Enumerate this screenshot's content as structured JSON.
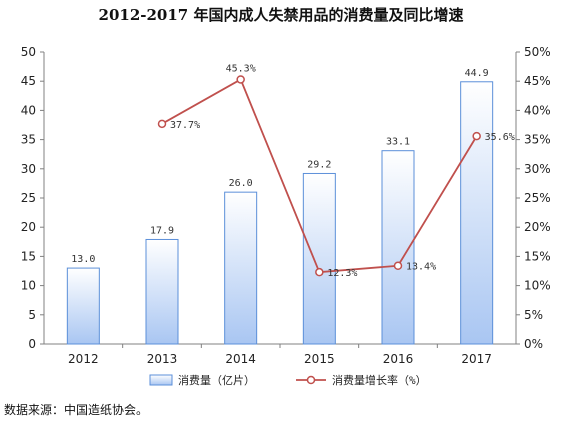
{
  "title": "2012-2017 年国内成人失禁用品的消费量及同比增速",
  "source": "数据来源：中国造纸协会。",
  "colors": {
    "bar_top": "#ffffff",
    "bar_bottom": "#a9c6f2",
    "bar_border": "#5b8fd9",
    "line": "#c0504d",
    "axis": "#808080"
  },
  "chart_data": {
    "type": "bar",
    "title": "2012-2017 年国内成人失禁用品的消费量及同比增速",
    "categories": [
      "2012",
      "2013",
      "2014",
      "2015",
      "2016",
      "2017"
    ],
    "series": [
      {
        "name": "消费量（亿片）",
        "type": "bar",
        "axis": "left",
        "values": [
          13.0,
          17.9,
          26.0,
          29.2,
          33.1,
          44.9
        ],
        "labels": [
          "13.0",
          "17.9",
          "26.0",
          "29.2",
          "33.1",
          "44.9"
        ]
      },
      {
        "name": "消费量增长率（%）",
        "type": "line",
        "axis": "right",
        "values": [
          null,
          37.7,
          45.3,
          12.3,
          13.4,
          35.6
        ],
        "labels": [
          "",
          "37.7%",
          "45.3%",
          "12.3%",
          "13.4%",
          "35.6%"
        ]
      }
    ],
    "y_left": {
      "min": 0,
      "max": 50,
      "step": 5,
      "ticks": [
        "0",
        "5",
        "10",
        "15",
        "20",
        "25",
        "30",
        "35",
        "40",
        "45",
        "50"
      ]
    },
    "y_right": {
      "min": 0,
      "max": 50,
      "step": 5,
      "ticks": [
        "0%",
        "5%",
        "10%",
        "15%",
        "20%",
        "25%",
        "30%",
        "35%",
        "40%",
        "45%",
        "50%"
      ]
    },
    "grid": false,
    "legend_position": "bottom"
  }
}
